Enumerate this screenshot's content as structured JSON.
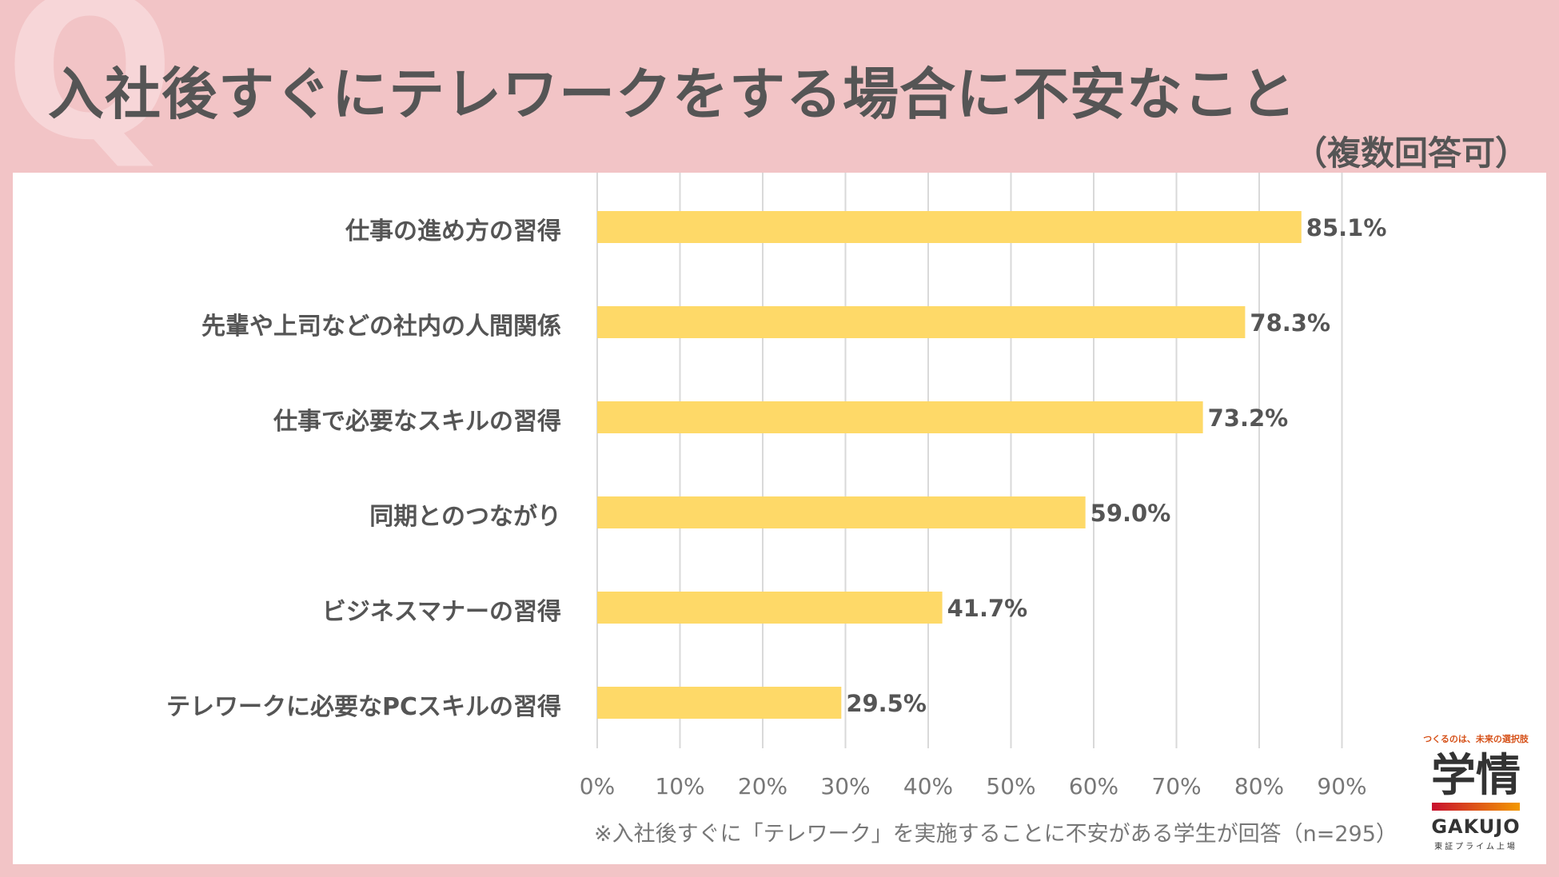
{
  "title": "入社後すぐにテレワークをする場合に不安なこと",
  "subtitle": "（複数回答可）",
  "chart_data": {
    "type": "bar",
    "orientation": "horizontal",
    "categories": [
      "仕事の進め方の習得",
      "先輩や上司などの社内の人間関係",
      "仕事で必要なスキルの習得",
      "同期とのつながり",
      "ビジネスマナーの習得",
      "テレワークに必要なPCスキルの習得"
    ],
    "values": [
      85.1,
      78.3,
      73.2,
      59.0,
      41.7,
      29.5
    ],
    "value_labels": [
      "85.1%",
      "78.3%",
      "73.2%",
      "59.0%",
      "41.7%",
      "29.5%"
    ],
    "xlim": [
      0,
      90
    ],
    "x_ticks": [
      "0%",
      "10%",
      "20%",
      "30%",
      "40%",
      "50%",
      "60%",
      "70%",
      "80%",
      "90%"
    ],
    "grid": true,
    "bar_color": "#fed968",
    "grid_color": "#d9d9d9"
  },
  "footnote": "※入社後すぐに「テレワーク」を実施することに不安がある学生が回答（n=295）",
  "logo": {
    "tagline": "つくるのは、未来の選択肢",
    "name_jp": "学情",
    "name_en": "GAKUJO",
    "listing": "東証プライム上場"
  },
  "colors": {
    "background": "#f2c4c6",
    "title_text": "#555555",
    "panel": "#ffffff"
  }
}
